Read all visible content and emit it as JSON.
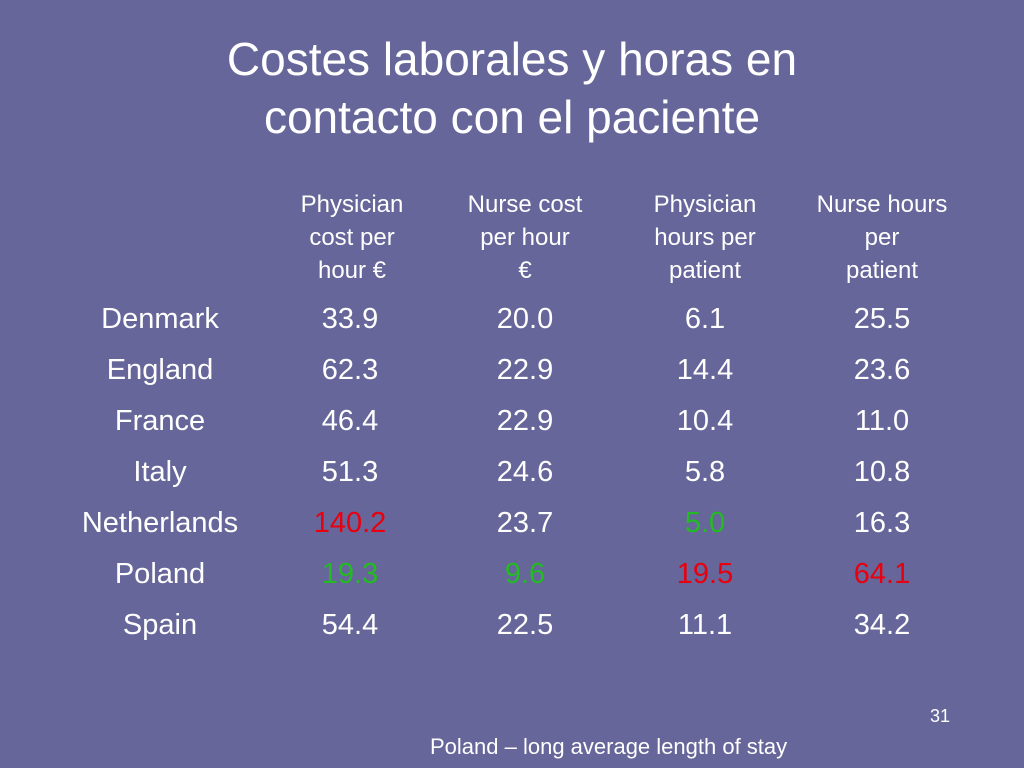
{
  "title_line1": "Costes laborales y horas en",
  "title_line2": "contacto con el paciente",
  "headers": [
    "Physician\ncost per\nhour €",
    "Nurse cost\nper hour\n€",
    "Physician\nhours per\npatient",
    "Nurse hours\nper\npatient"
  ],
  "rows": [
    {
      "country": "Denmark",
      "values": [
        "33.9",
        "20.0",
        "6.1",
        "25.5"
      ]
    },
    {
      "country": "England",
      "values": [
        "62.3",
        "22.9",
        "14.4",
        "23.6"
      ]
    },
    {
      "country": "France",
      "values": [
        "46.4",
        "22.9",
        "10.4",
        "11.0"
      ]
    },
    {
      "country": "Italy",
      "values": [
        "51.3",
        "24.6",
        "5.8",
        "10.8"
      ]
    },
    {
      "country": "Netherlands",
      "values": [
        "140.2",
        "23.7",
        "5.0",
        "16.3"
      ]
    },
    {
      "country": "Poland",
      "values": [
        "19.3",
        "9.6",
        "19.5",
        "64.1"
      ]
    },
    {
      "country": "Spain",
      "values": [
        "54.4",
        "22.5",
        "11.1",
        "34.2"
      ]
    }
  ],
  "colors": {
    "background": "#66669a",
    "text": "#ffffff",
    "highlight_high": "#e8000e",
    "highlight_low": "#22bb22"
  },
  "page_number": "31",
  "footnote": "Poland – long average length of stay"
}
